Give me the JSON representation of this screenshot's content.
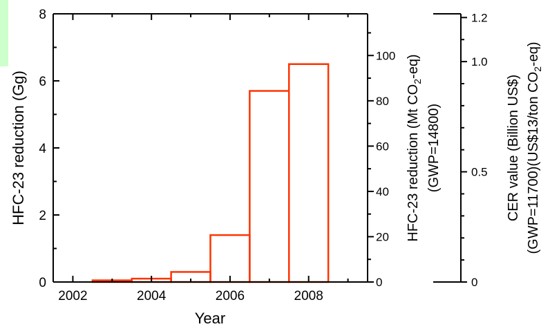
{
  "chart_data": {
    "type": "bar",
    "x": [
      2003,
      2004,
      2005,
      2006,
      2007,
      2008
    ],
    "values": [
      0.05,
      0.1,
      0.3,
      1.4,
      5.7,
      6.5
    ],
    "xlabel": "Year",
    "ylabel": "HFC-23 reduction (Gg)",
    "xlim": [
      2001.5,
      2009.5
    ],
    "ylim": [
      0,
      8
    ],
    "x_ticks": [
      2002,
      2004,
      2006,
      2008
    ],
    "y_ticks": [
      0,
      2,
      4,
      6,
      8
    ],
    "grid": false,
    "bar_color": "#ff3300",
    "secondary_axes": [
      {
        "label_line1": "HFC-23 reduction (Mt CO",
        "label_sub": "2",
        "label_line1_end": "-eq)",
        "label_line2": "(GWP=14800)",
        "range": [
          0,
          118.4
        ],
        "ticks": [
          0,
          20,
          40,
          60,
          80,
          100
        ]
      },
      {
        "label_line1": "CER value (Billion US$)",
        "label_line2_start": "(GWP=11700)(US$13/ton CO",
        "label_sub": "2",
        "label_line2_end": "-eq)",
        "range": [
          0,
          1.2168
        ],
        "ticks": [
          "0",
          "0.5",
          "1.0",
          "1.2"
        ],
        "tick_values": [
          0,
          0.5,
          1.0,
          1.2
        ]
      }
    ]
  },
  "accent_color": "#ccffcc"
}
